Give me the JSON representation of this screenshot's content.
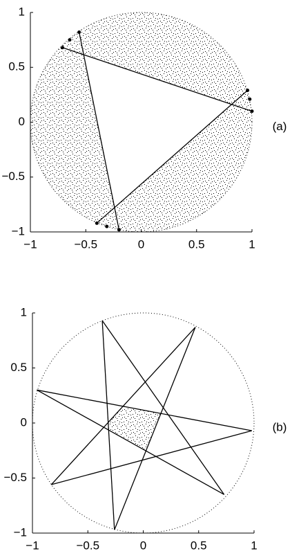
{
  "chart_data": [
    {
      "type": "geometry",
      "label": "(a)",
      "radius": 1,
      "shade": "outside",
      "xlim": [
        -1,
        1
      ],
      "ylim": [
        -1,
        1
      ],
      "xticks": [
        {
          "value": -1,
          "label": "−1"
        },
        {
          "value": -0.5,
          "label": "−0.5"
        },
        0,
        0.5,
        1
      ],
      "yticks": [
        {
          "value": -1,
          "label": "−1"
        },
        {
          "value": -0.5,
          "label": "−0.5"
        },
        0,
        0.5,
        1
      ],
      "lines": [
        {
          "x": [
            -0.71,
            1.0
          ],
          "y": [
            0.68,
            0.1
          ]
        },
        {
          "x": [
            -0.56,
            -0.2
          ],
          "y": [
            0.82,
            -0.98
          ]
        },
        {
          "x": [
            -0.4,
            0.96
          ],
          "y": [
            -0.92,
            0.29
          ]
        }
      ],
      "points": {
        "x": [
          -0.645,
          -0.31,
          0.98
        ],
        "y": [
          0.75,
          -0.95,
          0.21
        ]
      }
    },
    {
      "type": "geometry",
      "label": "(b)",
      "radius": 1,
      "shade": "inside",
      "xlim": [
        -1,
        1
      ],
      "ylim": [
        -1,
        1
      ],
      "xticks": [
        {
          "value": -1,
          "label": "−1"
        },
        {
          "value": -0.5,
          "label": "−0.5"
        },
        0,
        0.5,
        1
      ],
      "yticks": [
        {
          "value": -1,
          "label": "−1"
        },
        {
          "value": -0.5,
          "label": "−0.5"
        },
        0,
        0.5,
        1
      ],
      "lines": [
        {
          "x": [
            0.98,
            -0.96
          ],
          "y": [
            -0.07,
            0.3
          ]
        },
        {
          "x": [
            -0.96,
            0.73
          ],
          "y": [
            0.3,
            -0.65
          ]
        },
        {
          "x": [
            0.73,
            -0.37
          ],
          "y": [
            -0.65,
            0.93
          ]
        },
        {
          "x": [
            -0.37,
            -0.26
          ],
          "y": [
            0.93,
            -0.97
          ]
        },
        {
          "x": [
            -0.26,
            0.47
          ],
          "y": [
            -0.97,
            0.87
          ]
        },
        {
          "x": [
            0.47,
            -0.83
          ],
          "y": [
            0.87,
            -0.56
          ]
        },
        {
          "x": [
            -0.83,
            0.98
          ],
          "y": [
            -0.56,
            -0.07
          ]
        }
      ],
      "points": {
        "x": [],
        "y": []
      }
    }
  ]
}
